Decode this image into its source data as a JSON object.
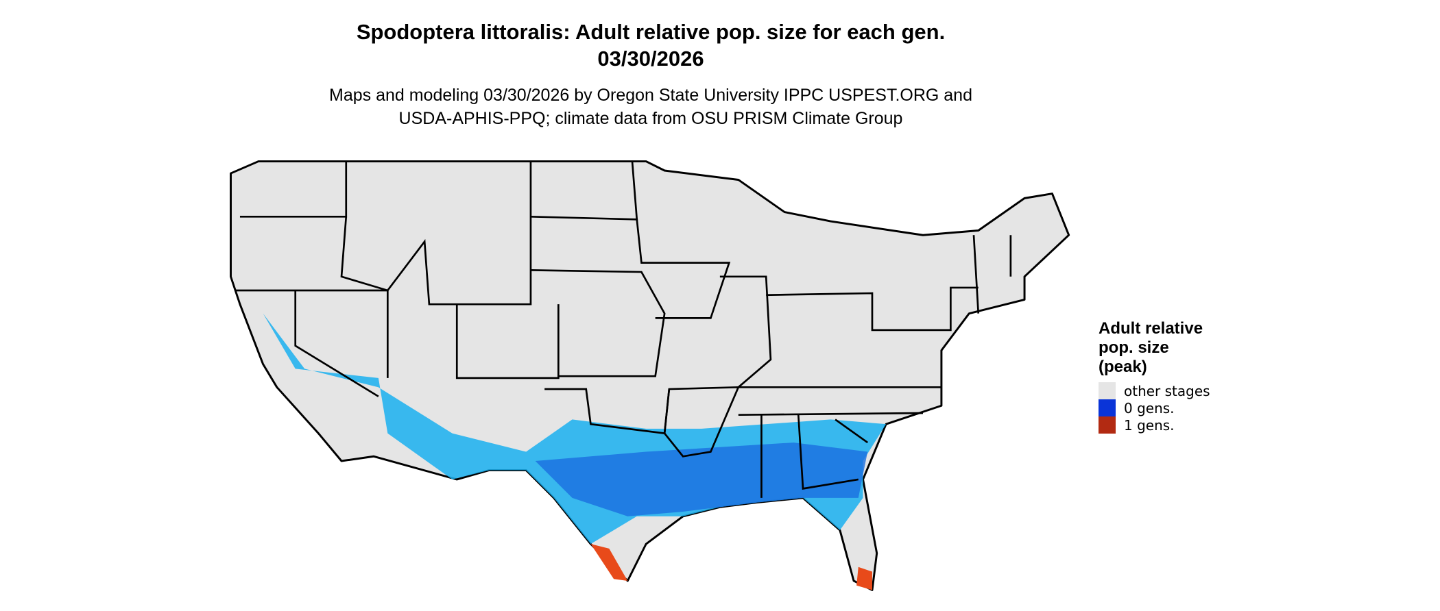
{
  "title": "Spodoptera littoralis: Adult relative pop. size for each gen.",
  "date": "03/30/2026",
  "subtitle_lines": [
    "Maps and modeling 03/30/2026 by Oregon State University IPPC USPEST.ORG and",
    "USDA-APHIS-PPQ; climate data from OSU PRISM Climate Group"
  ],
  "legend": {
    "title": "Adult relative pop. size (peak)",
    "items": [
      {
        "label": "other stages",
        "color": "#e5e5e5"
      },
      {
        "label": "0 gens.",
        "color": "#0a34d8"
      },
      {
        "label": "1 gens.",
        "color": "#b22a12"
      }
    ]
  }
}
